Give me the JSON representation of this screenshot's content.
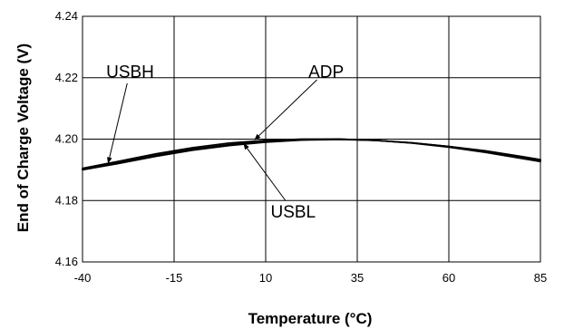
{
  "chart_data": {
    "type": "line",
    "xlabel": "Temperature (°C)",
    "ylabel": "End of Charge Voltage (V)",
    "xlim": [
      -40,
      85
    ],
    "ylim": [
      4.16,
      4.24
    ],
    "xticks": [
      -40,
      -15,
      10,
      35,
      60,
      85
    ],
    "yticks": [
      4.16,
      4.18,
      4.2,
      4.22,
      4.24
    ],
    "xtick_labels": [
      "-40",
      "-15",
      "10",
      "35",
      "60",
      "85"
    ],
    "ytick_labels": [
      "4.16",
      "4.18",
      "4.20",
      "4.22",
      "4.24"
    ],
    "grid": true,
    "series": [
      {
        "name": "ADP",
        "x": [
          -40,
          -30,
          -20,
          -10,
          0,
          10,
          20,
          30,
          40,
          50,
          60,
          70,
          80,
          85
        ],
        "y": [
          4.1905,
          4.1928,
          4.1952,
          4.1972,
          4.1987,
          4.1996,
          4.2,
          4.2,
          4.1996,
          4.1988,
          4.1976,
          4.1962,
          4.1943,
          4.1933
        ]
      },
      {
        "name": "USBH",
        "x": [
          -40,
          -30,
          -20,
          -10,
          0,
          10,
          20,
          30,
          40,
          50,
          60,
          70,
          80,
          85
        ],
        "y": [
          4.1902,
          4.1924,
          4.1947,
          4.1967,
          4.1982,
          4.1993,
          4.1998,
          4.2,
          4.1996,
          4.1988,
          4.1976,
          4.196,
          4.1941,
          4.1931
        ]
      },
      {
        "name": "USBL",
        "x": [
          -40,
          -30,
          -20,
          -10,
          0,
          10,
          20,
          30,
          40,
          50,
          60,
          70,
          80,
          85
        ],
        "y": [
          4.19,
          4.1921,
          4.1944,
          4.1964,
          4.1979,
          4.199,
          4.1997,
          4.1999,
          4.1996,
          4.1987,
          4.1974,
          4.1957,
          4.1937,
          4.1927
        ]
      }
    ],
    "annotations": [
      {
        "text": "USBH",
        "label_x": -27,
        "label_y": 4.2222,
        "arrow_x": -33,
        "arrow_y": 4.1922
      },
      {
        "text": "ADP",
        "label_x": 26.5,
        "label_y": 4.2222,
        "arrow_x": 7,
        "arrow_y": 4.1998
      },
      {
        "text": "USBL",
        "label_x": 17.5,
        "label_y": 4.1766,
        "arrow_x": 4,
        "arrow_y": 4.1985
      }
    ]
  }
}
